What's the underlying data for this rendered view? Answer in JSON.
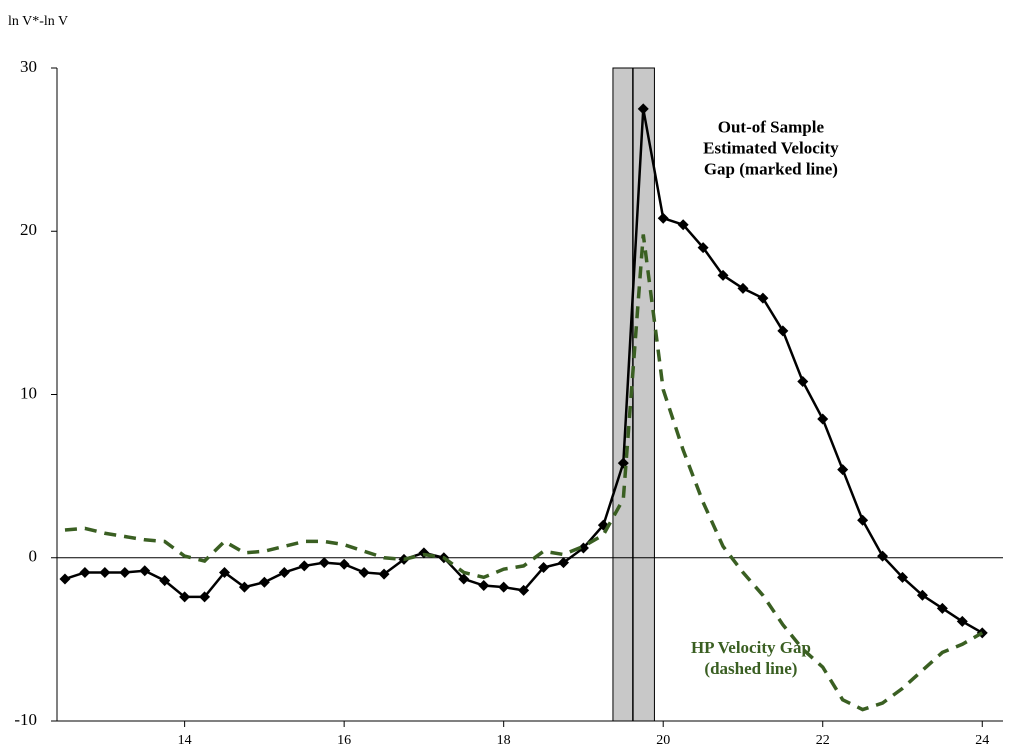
{
  "chart_data": {
    "type": "line",
    "y_axis_label": "ln V*-ln V",
    "x": [
      12.5,
      12.75,
      13,
      13.25,
      13.5,
      13.75,
      14,
      14.25,
      14.5,
      14.75,
      15,
      15.25,
      15.5,
      15.75,
      16,
      16.25,
      16.5,
      16.75,
      17,
      17.25,
      17.5,
      17.75,
      18,
      18.25,
      18.5,
      18.75,
      19,
      19.25,
      19.5,
      19.75,
      20,
      20.25,
      20.5,
      20.75,
      21,
      21.25,
      21.5,
      21.75,
      22,
      22.25,
      22.5,
      22.75,
      23,
      23.25,
      23.5,
      23.75,
      24
    ],
    "series": [
      {
        "color": "#000000",
        "style": "solid",
        "markers": true,
        "values": [
          -1.3,
          -0.9,
          -0.9,
          -0.9,
          -0.8,
          -1.4,
          -2.4,
          -2.4,
          -0.9,
          -1.8,
          -1.5,
          -0.9,
          -0.5,
          -0.3,
          -0.4,
          -0.9,
          -1.0,
          -0.1,
          0.3,
          0.0,
          -1.3,
          -1.7,
          -1.8,
          -2.0,
          -0.6,
          -0.3,
          0.6,
          2.0,
          5.8,
          27.5,
          20.8,
          20.4,
          19.0,
          17.3,
          16.5,
          15.9,
          13.9,
          10.8,
          8.5,
          5.4,
          2.3,
          0.1,
          -1.2,
          -2.3,
          -3.1,
          -3.9,
          -4.6
        ]
      },
      {
        "color": "#3a5f22",
        "style": "dashed",
        "markers": false,
        "values": [
          1.7,
          1.8,
          1.5,
          1.3,
          1.1,
          1.0,
          0.1,
          -0.2,
          1.0,
          0.3,
          0.4,
          0.7,
          1.0,
          1.0,
          0.8,
          0.4,
          0.0,
          -0.1,
          0.2,
          0.0,
          -0.9,
          -1.2,
          -0.7,
          -0.5,
          0.4,
          0.2,
          0.7,
          1.4,
          3.6,
          19.8,
          10.3,
          6.6,
          3.4,
          0.7,
          -0.9,
          -2.3,
          -4.1,
          -5.6,
          -6.7,
          -8.7,
          -9.3,
          -8.9,
          -8.0,
          -6.9,
          -5.8,
          -5.3,
          -4.6
        ]
      }
    ],
    "shaded_region": [
      19.37,
      19.89
    ],
    "vertical_line": 19.62,
    "xlim": [
      12.4,
      24.26
    ],
    "xticks": [
      14,
      16,
      18,
      20,
      22,
      24
    ],
    "ylim": [
      -10,
      30
    ],
    "yticks": [
      -10,
      0,
      10,
      20,
      30
    ],
    "annotations": [
      {
        "lines": [
          "Out-of Sample",
          "Estimated Velocity",
          "Gap (marked line)"
        ],
        "color": "#000000",
        "x": 21.35,
        "y": 26.3
      },
      {
        "lines": [
          "HP Velocity Gap",
          "(dashed line)"
        ],
        "color": "#3a5f22",
        "x": 21.1,
        "y": -5.6
      }
    ]
  }
}
